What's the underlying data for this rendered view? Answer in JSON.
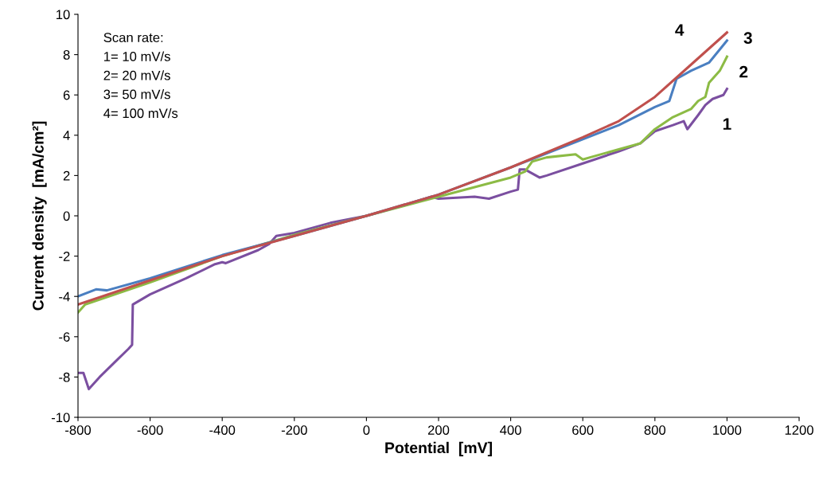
{
  "chart_data": {
    "type": "line",
    "xlabel": "Potential  [mV]",
    "ylabel": "Current density  [mA/cm²]",
    "xlim": [
      -800,
      1200
    ],
    "ylim": [
      -10,
      10
    ],
    "xticks": [
      -800,
      -600,
      -400,
      -200,
      0,
      200,
      400,
      600,
      800,
      1000,
      1200
    ],
    "yticks": [
      -10,
      -8,
      -6,
      -4,
      -2,
      0,
      2,
      4,
      6,
      8,
      10
    ],
    "grid": false,
    "marker": "none",
    "line_style": "solid",
    "series": [
      {
        "name": "1",
        "color": "#7b4fa0",
        "x": [
          -800,
          -785,
          -770,
          -740,
          -700,
          -660,
          -650,
          -648,
          -600,
          -500,
          -420,
          -400,
          -390,
          -300,
          -270,
          -250,
          -200,
          -100,
          0,
          100,
          180,
          200,
          300,
          340,
          400,
          420,
          425,
          440,
          460,
          480,
          500,
          600,
          700,
          760,
          800,
          850,
          880,
          890,
          920,
          940,
          960,
          990,
          1000
        ],
        "values": [
          -7.8,
          -7.8,
          -8.6,
          -8.0,
          -7.3,
          -6.6,
          -6.4,
          -4.4,
          -3.9,
          -3.1,
          -2.4,
          -2.3,
          -2.35,
          -1.7,
          -1.4,
          -1.0,
          -0.85,
          -0.35,
          0,
          0.5,
          0.95,
          0.85,
          0.95,
          0.85,
          1.2,
          1.3,
          2.3,
          2.3,
          2.1,
          1.9,
          2.0,
          2.6,
          3.2,
          3.6,
          4.2,
          4.5,
          4.7,
          4.3,
          5.0,
          5.5,
          5.8,
          6.0,
          6.3
        ]
      },
      {
        "name": "2",
        "color": "#8cbb45",
        "x": [
          -800,
          -780,
          -600,
          -400,
          -200,
          0,
          200,
          400,
          440,
          460,
          500,
          580,
          600,
          620,
          700,
          760,
          800,
          850,
          900,
          920,
          940,
          950,
          980,
          1000
        ],
        "values": [
          -4.8,
          -4.4,
          -3.3,
          -2.0,
          -0.95,
          0,
          0.95,
          1.9,
          2.2,
          2.7,
          2.9,
          3.05,
          2.8,
          2.9,
          3.3,
          3.6,
          4.3,
          4.9,
          5.3,
          5.7,
          5.9,
          6.6,
          7.2,
          7.9
        ]
      },
      {
        "name": "3",
        "color": "#4a7fc1",
        "x": [
          -800,
          -750,
          -720,
          -600,
          -400,
          -200,
          0,
          200,
          400,
          600,
          700,
          800,
          840,
          860,
          900,
          950,
          1000
        ],
        "values": [
          -4.0,
          -3.65,
          -3.7,
          -3.1,
          -1.95,
          -1.0,
          0,
          1.05,
          2.4,
          3.8,
          4.5,
          5.4,
          5.7,
          6.8,
          7.2,
          7.6,
          8.7
        ]
      },
      {
        "name": "4",
        "color": "#c0504d",
        "x": [
          -800,
          -600,
          -400,
          -200,
          0,
          200,
          400,
          600,
          700,
          800,
          900,
          1000
        ],
        "values": [
          -4.4,
          -3.2,
          -2.0,
          -1.0,
          0,
          1.05,
          2.4,
          3.9,
          4.7,
          5.9,
          7.5,
          9.1
        ]
      }
    ],
    "annotations": [
      "Scan rate:",
      "1= 10 mV/s",
      "2= 20 mV/s",
      "3= 50 mV/s",
      "4= 100 mV/s"
    ]
  }
}
